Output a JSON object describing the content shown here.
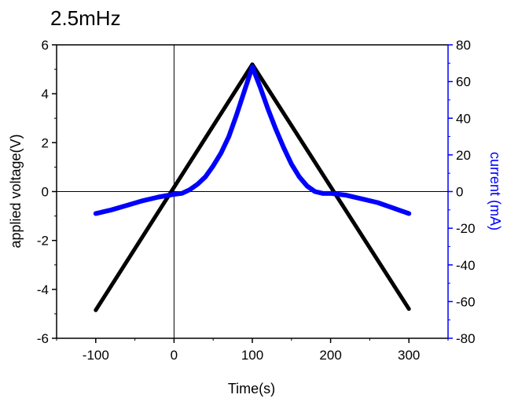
{
  "chart_data": {
    "type": "line",
    "title": "2.5mHz",
    "xlabel": "Time(s)",
    "ylabel_left": "applied voltage(V)",
    "ylabel_right": "current (mA)",
    "xlim": [
      -150,
      350
    ],
    "ylim_left": [
      -6,
      6
    ],
    "ylim_right": [
      -80,
      80
    ],
    "x_ticks": [
      "-100",
      "0",
      "100",
      "200",
      "300"
    ],
    "y_left_ticks": [
      "-6",
      "-4",
      "-2",
      "0",
      "2",
      "4",
      "6"
    ],
    "y_right_ticks": [
      "-80",
      "-60",
      "-40",
      "-20",
      "0",
      "20",
      "40",
      "60",
      "80"
    ],
    "reference_lines": {
      "x": 0,
      "y": 0
    },
    "series": [
      {
        "axis": "left",
        "color": "#000000",
        "x": [
          -100,
          100,
          300
        ],
        "y": [
          -4.85,
          5.2,
          -4.8
        ]
      },
      {
        "axis": "right",
        "color": "#0000ff",
        "x": [
          -100,
          -80,
          -60,
          -40,
          -20,
          0,
          10,
          20,
          30,
          40,
          50,
          60,
          70,
          80,
          90,
          100,
          110,
          120,
          130,
          140,
          150,
          160,
          170,
          180,
          190,
          200,
          220,
          240,
          260,
          280,
          300
        ],
        "y": [
          -12,
          -10,
          -7.5,
          -5,
          -3,
          -1.5,
          -1,
          1,
          4,
          8,
          14,
          21,
          30,
          42,
          55,
          68,
          57,
          45,
          34,
          24,
          15,
          8,
          3,
          0,
          -1,
          -1,
          -2,
          -4,
          -6,
          -9,
          -12
        ]
      }
    ]
  }
}
